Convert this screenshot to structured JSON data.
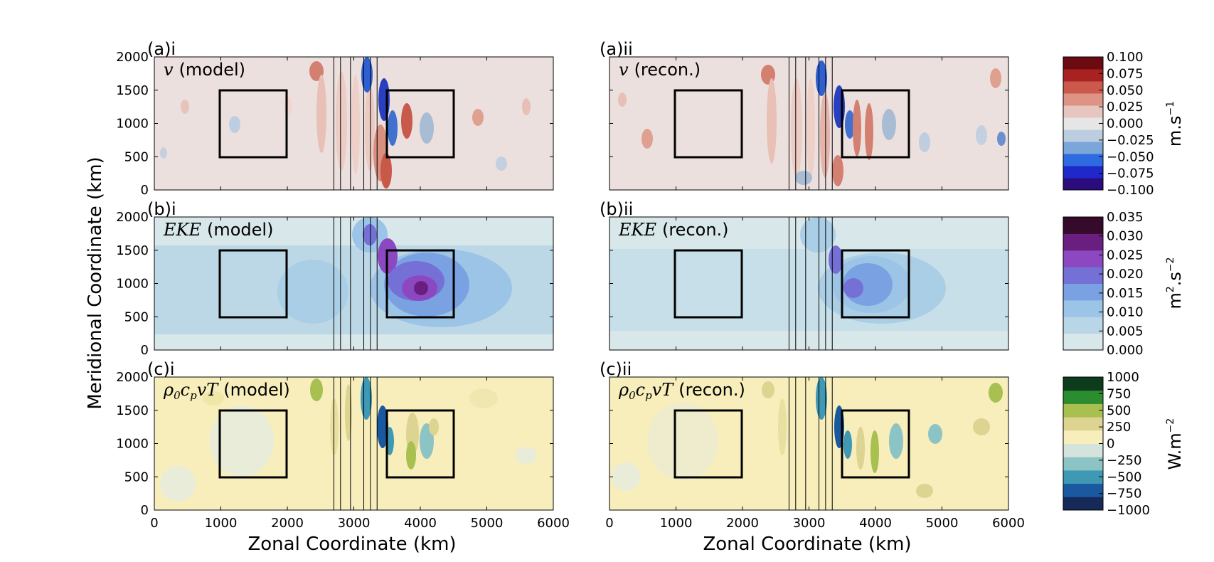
{
  "chart_data": {
    "type": "heatmap",
    "shared": {
      "xlabel": "Zonal Coordinate (km)",
      "ylabel": "Meridional Coordinate (km)",
      "xlim": [
        0,
        6000
      ],
      "ylim": [
        0,
        2000
      ],
      "xticks": [
        "0",
        "1000",
        "2000",
        "3000",
        "4000",
        "5000",
        "6000"
      ],
      "yticks": [
        "0",
        "500",
        "1000",
        "1500",
        "2000"
      ],
      "boxes_km": [
        {
          "x0": 1000,
          "x1": 2000,
          "y0": 500,
          "y1": 1500
        },
        {
          "x0": 3500,
          "x1": 4500,
          "y0": 500,
          "y1": 1500
        }
      ],
      "vertical_lines_left_km": [
        2700,
        2800,
        2950,
        3150,
        3250,
        3350
      ],
      "vertical_lines_right_km": [
        2700,
        2800,
        2950,
        3150,
        3250,
        3350
      ]
    },
    "rows": [
      {
        "key": "a",
        "variable": "v",
        "units": "m.s",
        "units_exponent": "−1",
        "panels": [
          {
            "label": "(a)i",
            "suffix": "(model)"
          },
          {
            "label": "(a)ii",
            "suffix": "(recon.)"
          }
        ],
        "colorbar_ticks": [
          "0.100",
          "0.075",
          "0.050",
          "0.025",
          "0.000",
          "−0.025",
          "−0.050",
          "−0.075",
          "−0.100"
        ],
        "colorbar_range": [
          -0.1,
          0.1
        ],
        "colors": [
          "#2a0c7c",
          "#1f28c8",
          "#2f6be0",
          "#7aa6da",
          "#bccde0",
          "#e6e6e6",
          "#e8c6c0",
          "#de9484",
          "#cc5a4c",
          "#a82222",
          "#6b0a10"
        ]
      },
      {
        "key": "b",
        "variable": "EKE",
        "units": "m",
        "units_mid": ".s",
        "units_exponent_1": "2",
        "units_exponent_2": "−2",
        "panels": [
          {
            "label": "(b)i",
            "suffix": "(model)"
          },
          {
            "label": "(b)ii",
            "suffix": "(recon.)"
          }
        ],
        "colorbar_ticks": [
          "0.035",
          "0.030",
          "0.025",
          "0.020",
          "0.015",
          "0.010",
          "0.005",
          "0.000"
        ],
        "colorbar_range": [
          0,
          0.035
        ],
        "colors": [
          "#d8e8ea",
          "#b8d6e6",
          "#9cc4e6",
          "#7aa2e2",
          "#7570d6",
          "#8c48c0",
          "#6a1f80",
          "#360a2a"
        ]
      },
      {
        "key": "c",
        "variable": "ρ0cpvT",
        "units": "W.m",
        "units_exponent": "−2",
        "panels": [
          {
            "label": "(c)i",
            "suffix": "(model)"
          },
          {
            "label": "(c)ii",
            "suffix": "(recon.)"
          }
        ],
        "colorbar_ticks": [
          "1000",
          "750",
          "500",
          "250",
          "0",
          "−250",
          "−500",
          "−750",
          "−1000"
        ],
        "colorbar_range": [
          -1000,
          1000
        ],
        "colors": [
          "#152a58",
          "#1a58a0",
          "#3f98b4",
          "#8cc4c6",
          "#d4e4dc",
          "#f7eebc",
          "#dcd490",
          "#a8c050",
          "#2c8c30",
          "#0c3c1c"
        ]
      }
    ]
  }
}
